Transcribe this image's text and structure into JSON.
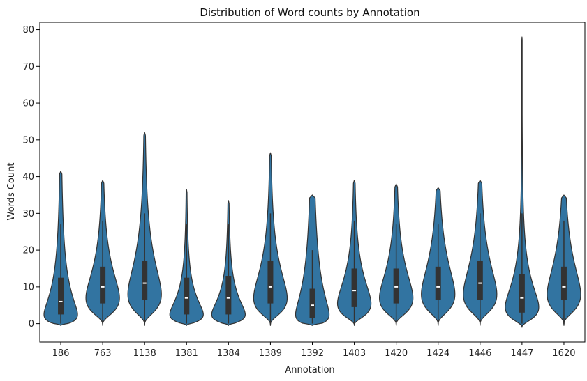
{
  "chart_data": {
    "type": "violin",
    "title": "Distribution of Word counts by Annotation",
    "xlabel": "Annotation",
    "ylabel": "Words Count",
    "ylim": [
      -5,
      82
    ],
    "yticks": [
      0,
      10,
      20,
      30,
      40,
      50,
      60,
      70,
      80
    ],
    "color": "#3274a1",
    "edge_color": "#333333",
    "categories": [
      "186",
      "763",
      "1138",
      "1381",
      "1384",
      "1389",
      "1392",
      "1403",
      "1420",
      "1424",
      "1446",
      "1447",
      "1620"
    ],
    "series": [
      {
        "name": "186",
        "min": -0.5,
        "max": 41.5,
        "q1": 2.5,
        "median": 6,
        "q3": 12.5,
        "whisker_high": 27,
        "mode": 2.5,
        "spread": 1.7
      },
      {
        "name": "763",
        "min": -0.5,
        "max": 39,
        "q1": 5.5,
        "median": 10,
        "q3": 15.5,
        "whisker_high": 28,
        "mode": 7,
        "spread": 0.9
      },
      {
        "name": "1138",
        "min": -0.5,
        "max": 52,
        "q1": 6.5,
        "median": 11,
        "q3": 17,
        "whisker_high": 30,
        "mode": 8,
        "spread": 0.95
      },
      {
        "name": "1381",
        "min": -0.5,
        "max": 36.5,
        "q1": 2.5,
        "median": 7,
        "q3": 12.5,
        "whisker_high": 27,
        "mode": 2.5,
        "spread": 1.3
      },
      {
        "name": "1384",
        "min": -0.5,
        "max": 33.5,
        "q1": 2.5,
        "median": 7,
        "q3": 13,
        "whisker_high": 27,
        "mode": 2.5,
        "spread": 1.3
      },
      {
        "name": "1389",
        "min": -0.5,
        "max": 46.5,
        "q1": 5.5,
        "median": 10,
        "q3": 17,
        "whisker_high": 30,
        "mode": 7,
        "spread": 0.95
      },
      {
        "name": "1392",
        "min": -0.5,
        "max": 35,
        "q1": 1.5,
        "median": 5,
        "q3": 9.5,
        "whisker_high": 20,
        "mode": 2.5,
        "spread": 2.0
      },
      {
        "name": "1403",
        "min": -0.5,
        "max": 39,
        "q1": 4.5,
        "median": 9,
        "q3": 15,
        "whisker_high": 28,
        "mode": 5.5,
        "spread": 1.0
      },
      {
        "name": "1420",
        "min": -0.5,
        "max": 38,
        "q1": 5.5,
        "median": 10,
        "q3": 15,
        "whisker_high": 27,
        "mode": 7,
        "spread": 0.9
      },
      {
        "name": "1424",
        "min": -0.5,
        "max": 37,
        "q1": 6.5,
        "median": 10,
        "q3": 15.5,
        "whisker_high": 27,
        "mode": 8,
        "spread": 0.9
      },
      {
        "name": "1446",
        "min": -0.5,
        "max": 39,
        "q1": 6.5,
        "median": 11,
        "q3": 17,
        "whisker_high": 30,
        "mode": 8,
        "spread": 0.9
      },
      {
        "name": "1447",
        "min": -1,
        "max": 78,
        "q1": 3,
        "median": 7,
        "q3": 13.5,
        "whisker_high": 30,
        "mode": 4.5,
        "spread": 1.05
      },
      {
        "name": "1620",
        "min": -0.5,
        "max": 35,
        "q1": 6.5,
        "median": 10,
        "q3": 15.5,
        "whisker_high": 28,
        "mode": 8,
        "spread": 0.9
      }
    ]
  }
}
